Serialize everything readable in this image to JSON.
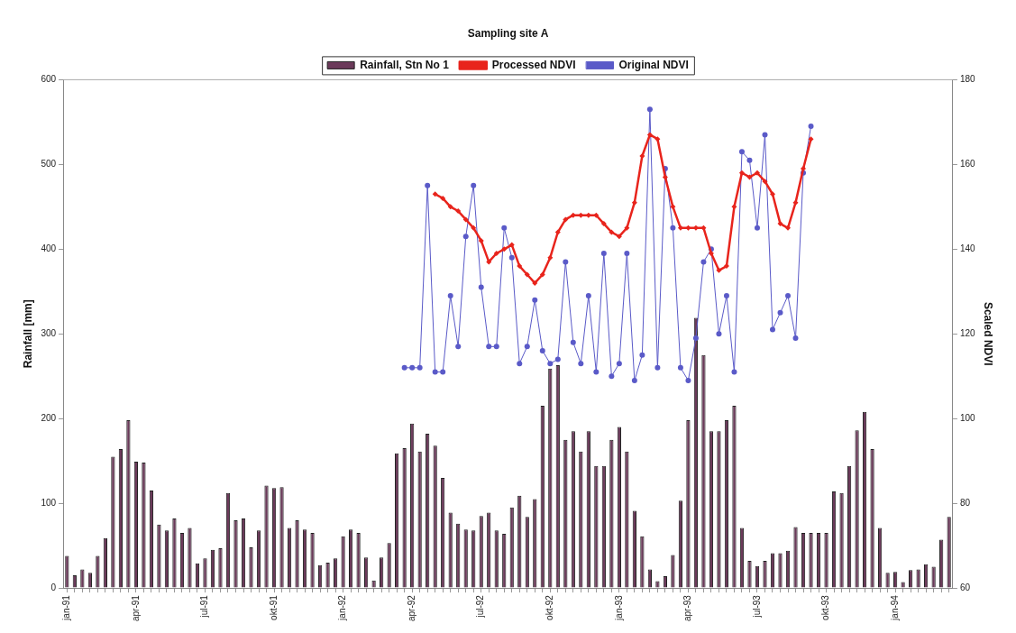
{
  "chart_data": {
    "type": "bar",
    "title": "Sampling site A",
    "ylabel": "Rainfall [mm]",
    "y2label": "Scaled NDVI",
    "legend": "top",
    "categories": [
      "jan-91",
      null,
      null,
      null,
      null,
      null,
      null,
      null,
      null,
      "apr-91",
      null,
      null,
      null,
      null,
      null,
      null,
      null,
      null,
      "jul-91",
      null,
      null,
      null,
      null,
      null,
      null,
      null,
      null,
      "okt-91",
      null,
      null,
      null,
      null,
      null,
      null,
      null,
      null,
      "jan-92",
      null,
      null,
      null,
      null,
      null,
      null,
      null,
      null,
      "apr-92",
      null,
      null,
      null,
      null,
      null,
      null,
      null,
      null,
      "jul-92",
      null,
      null,
      null,
      null,
      null,
      null,
      null,
      null,
      "okt-92",
      null,
      null,
      null,
      null,
      null,
      null,
      null,
      null,
      "jan-93",
      null,
      null,
      null,
      null,
      null,
      null,
      null,
      null,
      "apr-93",
      null,
      null,
      null,
      null,
      null,
      null,
      null,
      null,
      "jul-93",
      null,
      null,
      null,
      null,
      null,
      null,
      null,
      null,
      "okt-93",
      null,
      null,
      null,
      null,
      null,
      null,
      null,
      null,
      "jan-94",
      null,
      null,
      null,
      null,
      null,
      null,
      null
    ],
    "series": [
      {
        "name": "Rainfall, Stn No 1",
        "color": "#6b3a5a",
        "values": [
          38,
          15,
          22,
          18,
          38,
          59,
          155,
          164,
          198,
          149,
          148,
          115,
          75,
          68,
          82,
          65,
          71,
          29,
          35,
          45,
          47,
          112,
          80,
          82,
          48,
          68,
          121,
          118,
          119,
          71,
          80,
          69,
          65,
          27,
          30,
          35,
          61,
          69,
          65,
          36,
          9,
          36,
          53,
          159,
          165,
          194,
          161,
          182,
          168,
          130,
          89,
          76,
          69,
          68,
          85,
          89,
          68,
          64,
          95,
          109,
          84,
          105,
          215,
          259,
          263,
          175,
          185,
          161,
          185,
          144,
          144,
          175,
          190,
          161,
          91,
          61,
          22,
          8,
          14,
          39,
          103,
          198,
          319,
          275,
          185,
          185,
          198,
          215,
          71,
          32,
          26,
          32,
          41,
          41,
          44,
          72,
          65,
          65,
          65,
          65,
          114,
          112,
          144,
          186,
          208,
          164,
          71,
          18,
          19,
          7,
          21,
          22,
          28,
          25,
          57,
          84
        ]
      },
      {
        "name": "Processed NDVI",
        "type": "line",
        "axis": "y2",
        "color": "#e8241c",
        "marker": "diamond",
        "values": [
          null,
          null,
          null,
          null,
          null,
          null,
          null,
          null,
          null,
          null,
          null,
          null,
          null,
          null,
          null,
          null,
          null,
          null,
          null,
          null,
          null,
          null,
          null,
          null,
          null,
          null,
          null,
          null,
          null,
          null,
          null,
          null,
          null,
          null,
          null,
          null,
          null,
          null,
          null,
          null,
          null,
          null,
          null,
          null,
          null,
          null,
          null,
          null,
          153,
          152,
          150,
          149,
          147,
          145,
          142,
          137,
          139,
          140,
          141,
          136,
          134,
          132,
          134,
          138,
          144,
          147,
          148,
          148,
          148,
          148,
          146,
          144,
          143,
          145,
          151,
          162,
          167,
          166,
          157,
          150,
          145,
          145,
          145,
          145,
          139,
          135,
          136,
          150,
          158,
          157,
          158,
          156,
          153,
          146,
          145,
          151,
          159,
          166,
          null,
          null,
          null,
          null,
          null,
          null,
          null,
          null,
          null,
          null,
          null,
          null,
          null,
          null,
          null,
          null,
          null,
          null
        ]
      },
      {
        "name": "Original NDVI",
        "type": "line",
        "axis": "y2",
        "color": "#5a5ac8",
        "marker": "circle",
        "values": [
          null,
          null,
          null,
          null,
          null,
          null,
          null,
          null,
          null,
          null,
          null,
          null,
          null,
          null,
          null,
          null,
          null,
          null,
          null,
          null,
          null,
          null,
          null,
          null,
          null,
          null,
          null,
          null,
          null,
          null,
          null,
          null,
          null,
          null,
          null,
          null,
          null,
          null,
          null,
          null,
          null,
          null,
          null,
          null,
          112,
          112,
          112,
          155,
          111,
          111,
          129,
          117,
          143,
          155,
          131,
          117,
          117,
          145,
          138,
          113,
          117,
          128,
          116,
          113,
          114,
          137,
          118,
          113,
          129,
          111,
          139,
          110,
          113,
          139,
          109,
          115,
          173,
          112,
          159,
          145,
          112,
          109,
          119,
          137,
          140,
          120,
          129,
          111,
          163,
          161,
          145,
          167,
          121,
          125,
          129,
          119,
          158,
          169,
          null,
          null,
          null,
          null,
          null,
          null,
          null,
          null,
          null,
          null,
          null,
          null,
          null,
          null,
          null,
          null,
          null,
          null
        ]
      }
    ],
    "ylim": [
      0,
      600
    ],
    "yticks": [
      0,
      100,
      200,
      300,
      400,
      500,
      600
    ],
    "y2lim": [
      60,
      180
    ],
    "y2ticks": [
      60,
      80,
      100,
      120,
      140,
      160,
      180
    ]
  }
}
